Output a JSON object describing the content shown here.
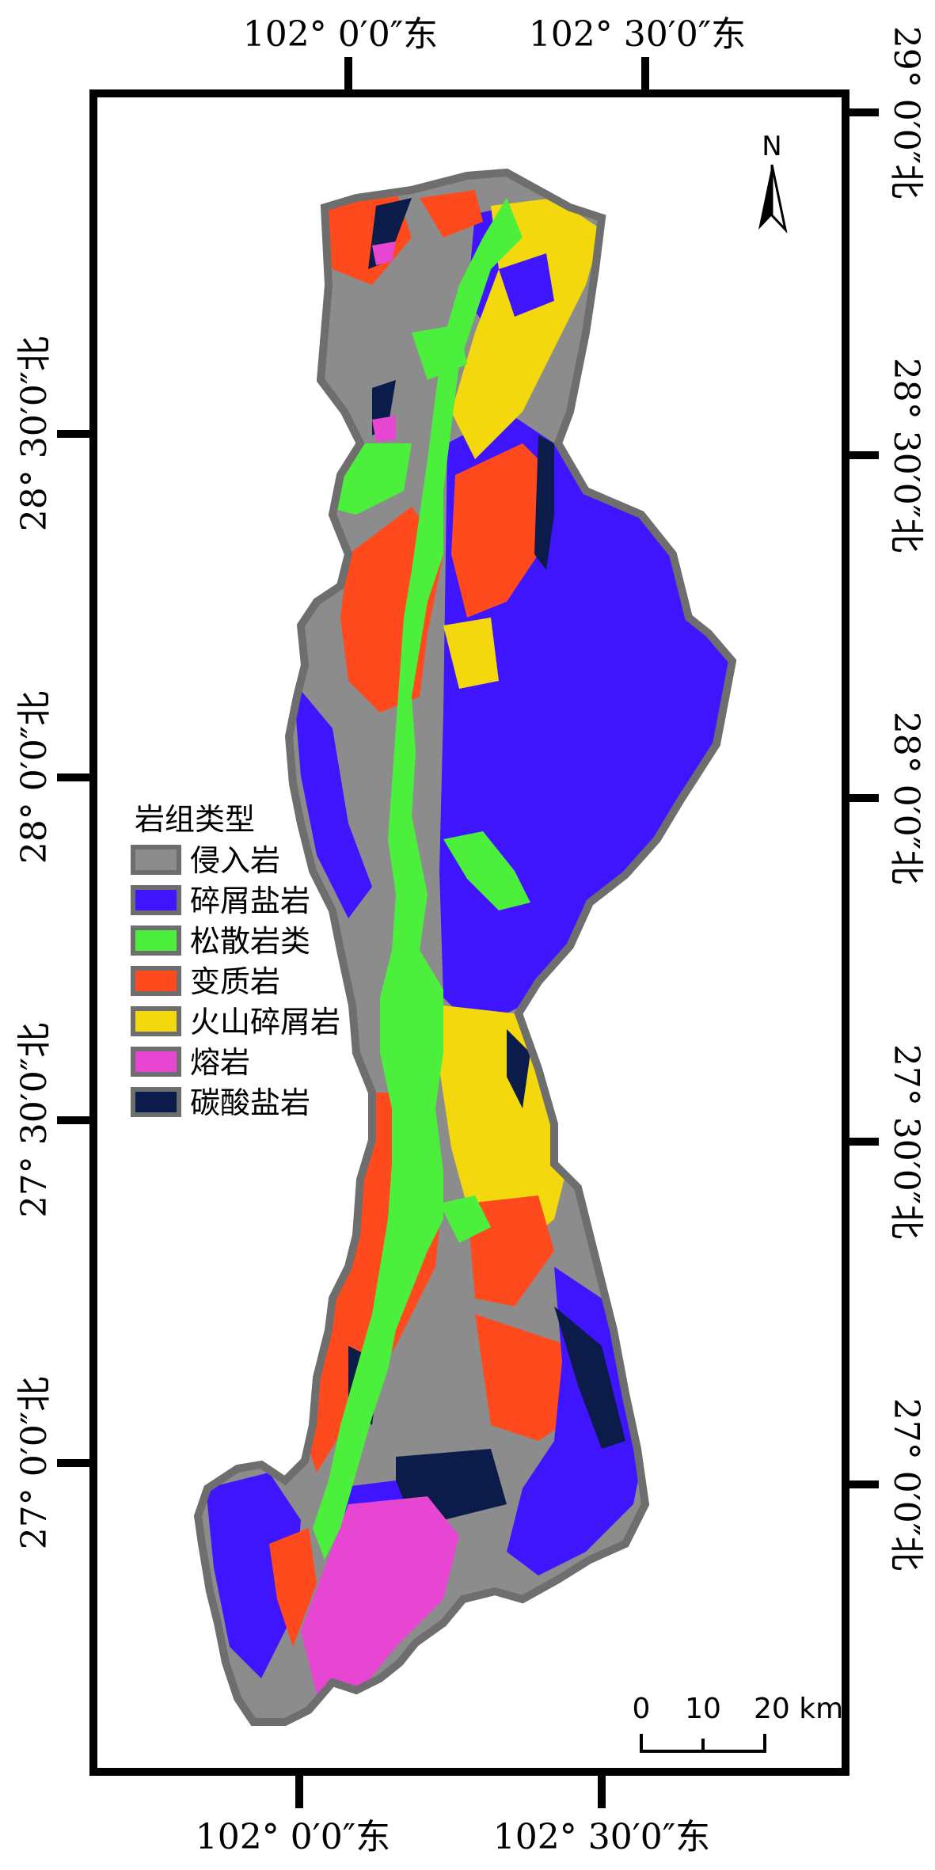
{
  "graticule": {
    "top": [
      "102° 0′0″东",
      "102° 30′0″东"
    ],
    "bottom": [
      "102° 0′0″东",
      "102° 30′0″东"
    ],
    "left": [
      "28° 30′0″北",
      "28° 0′0″北",
      "27° 30′0″北",
      "27° 0′0″北"
    ],
    "right": [
      "29° 0′0″北",
      "28° 30′0″北",
      "28° 0′0″北",
      "27° 30′0″北",
      "27° 0′0″北"
    ]
  },
  "legend": {
    "title": "岩组类型",
    "items": [
      {
        "label": "侵入岩",
        "color": "#8c8c8c"
      },
      {
        "label": "碎屑盐岩",
        "color": "#3f14ff"
      },
      {
        "label": "松散岩类",
        "color": "#4cf03c"
      },
      {
        "label": "变质岩",
        "color": "#ff4a1e"
      },
      {
        "label": "火山碎屑岩",
        "color": "#f2d80c"
      },
      {
        "label": "熔岩",
        "color": "#e646d2"
      },
      {
        "label": "碳酸盐岩",
        "color": "#0c1c4a"
      }
    ]
  },
  "north_arrow": {
    "label": "N"
  },
  "scale_bar": {
    "labels": [
      "0",
      "10",
      "20 km"
    ]
  }
}
